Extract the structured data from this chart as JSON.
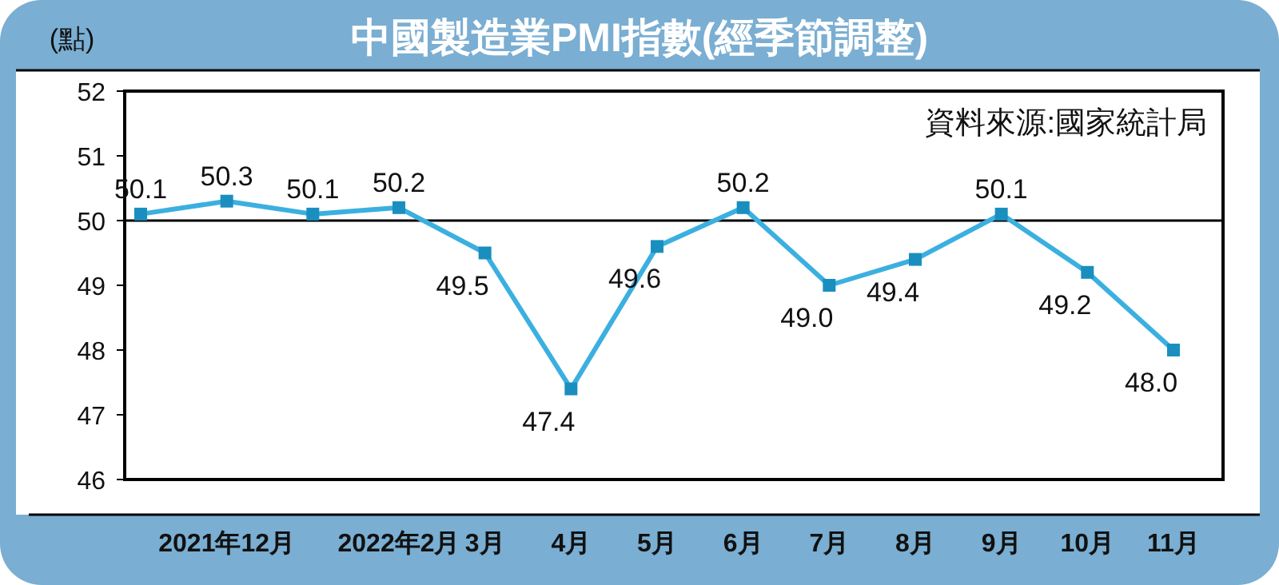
{
  "chart_data": {
    "type": "line",
    "title": "中國製造業PMI指數(經季節調整)",
    "ylabel": "(點)",
    "annotations": [
      "資料來源:國家統計局"
    ],
    "categories": [
      null,
      "2021年12月",
      null,
      "2022年2月",
      "3月",
      "4月",
      "5月",
      "6月",
      "7月",
      "8月",
      "9月",
      "10月",
      "11月"
    ],
    "series": [
      {
        "color": "#3bb0e0",
        "values": [
          50.1,
          50.3,
          50.1,
          50.2,
          49.5,
          47.4,
          49.6,
          50.2,
          49.0,
          49.4,
          50.1,
          49.2,
          48.0
        ],
        "value_labels": [
          "50.1",
          "50.3",
          "50.1",
          "50.2",
          "49.5",
          "47.4",
          "49.6",
          "50.2",
          "49.0",
          "49.4",
          "50.1",
          "49.2",
          "48.0"
        ]
      }
    ],
    "ylim": [
      46,
      52
    ],
    "yticks": [
      46,
      47,
      48,
      49,
      50,
      51,
      52
    ],
    "grid": false,
    "marker": "square",
    "line_style": "solid",
    "ref_lines": [
      {
        "axis": "y",
        "value": 50,
        "color": "#000000"
      }
    ]
  }
}
